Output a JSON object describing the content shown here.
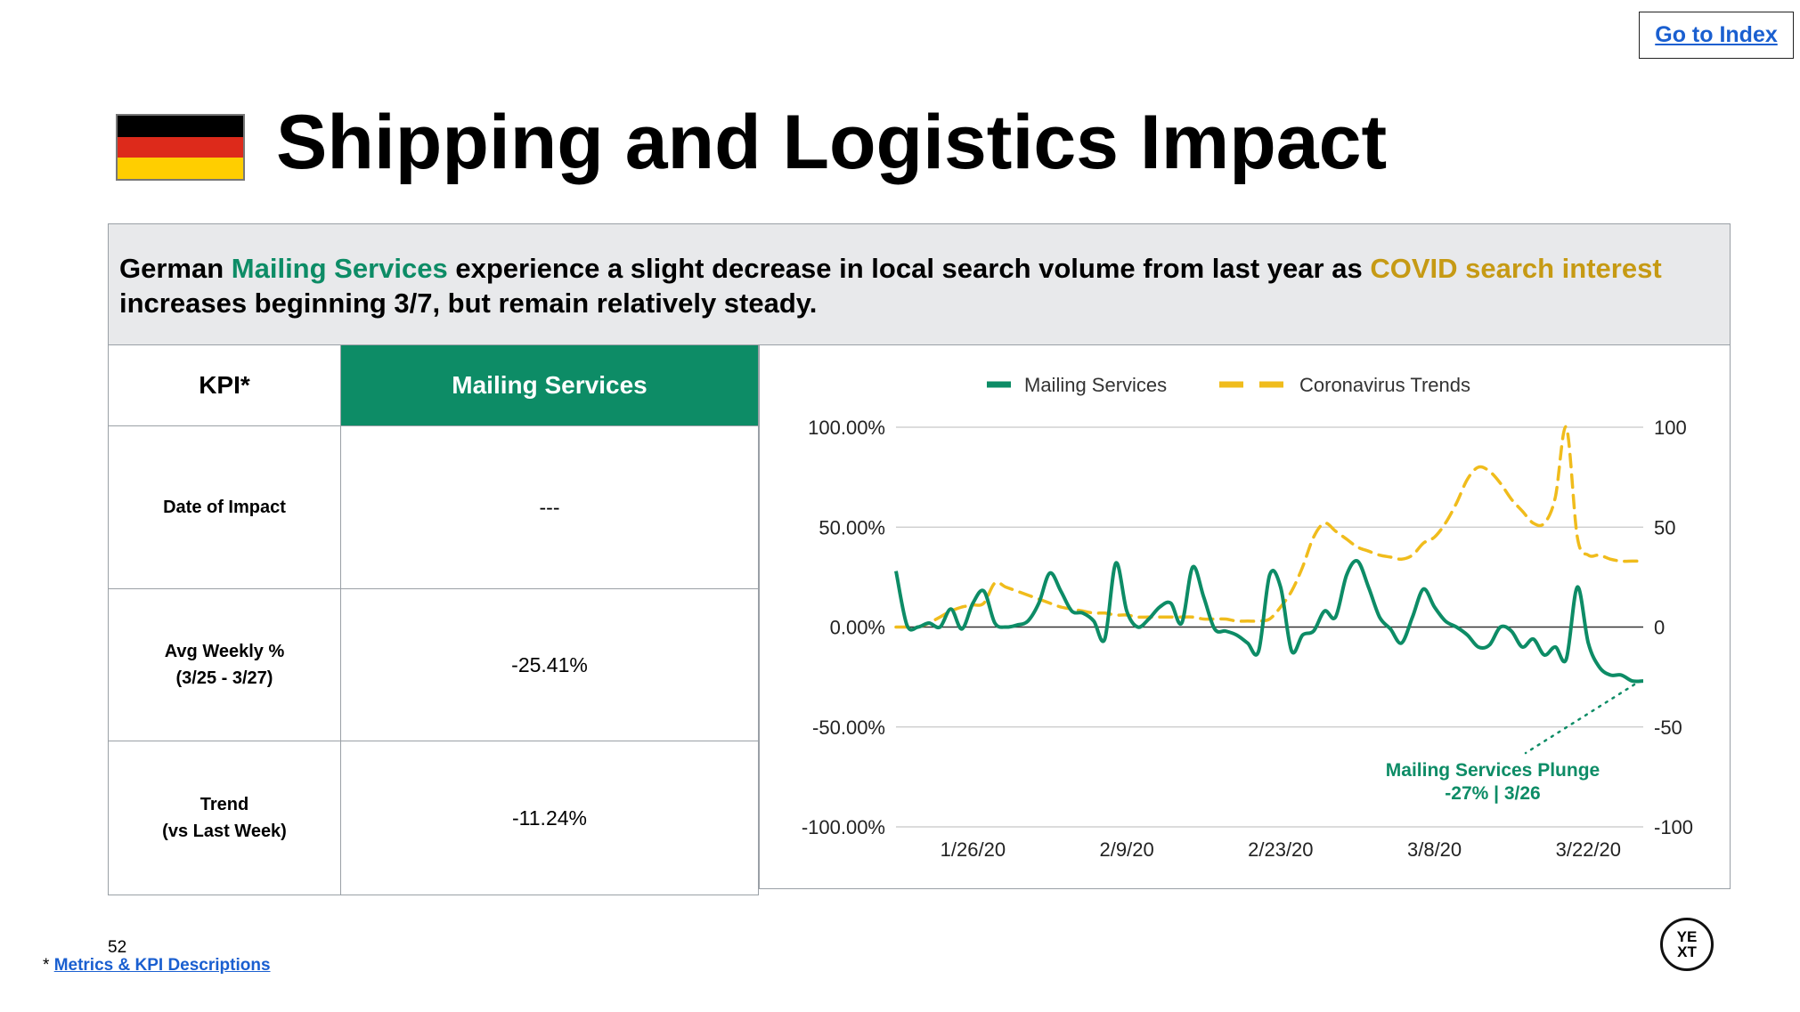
{
  "header": {
    "goto_label": "Go to Index",
    "title": "Shipping and Logistics Impact",
    "flag": {
      "name": "germany-flag",
      "colors": [
        "#000000",
        "#dd2a1b",
        "#ffce00"
      ]
    }
  },
  "banner": {
    "t1": "German ",
    "t2": "Mailing Services",
    "t3": " experience a slight decrease in local search volume from last year as ",
    "t4": "COVID search interest",
    "t5": " increases beginning 3/7, but remain relatively steady."
  },
  "kpi_table": {
    "header_left": "KPI*",
    "header_right": "Mailing Services",
    "rows": [
      {
        "label": "Date of Impact",
        "sublabel": "",
        "value": "---"
      },
      {
        "label": "Avg Weekly %",
        "sublabel": "(3/25 - 3/27)",
        "value": "-25.41%"
      },
      {
        "label": "Trend",
        "sublabel": "(vs Last Week)",
        "value": "-11.24%"
      }
    ]
  },
  "chart_data": {
    "type": "line",
    "title": "",
    "legend_placement": "top",
    "grid": true,
    "colors": {
      "mailing": "#0d8c66",
      "covid": "#f0bc1c",
      "grid": "#c8c8c8",
      "zero": "#333333",
      "annotation": "#0d8c66"
    },
    "x_ticks": [
      "1/26/20",
      "2/9/20",
      "2/23/20",
      "3/8/20",
      "3/22/20"
    ],
    "x_tick_positions": [
      7,
      21,
      35,
      49,
      63
    ],
    "x_range": [
      0,
      68
    ],
    "y_left": {
      "ticks": [
        "100.00%",
        "50.00%",
        "0.00%",
        "-50.00%",
        "-100.00%"
      ],
      "range": [
        -100,
        100
      ]
    },
    "y_right": {
      "ticks": [
        "100",
        "50",
        "0",
        "-50",
        "-100"
      ],
      "range": [
        -100,
        100
      ]
    },
    "series": [
      {
        "name": "Mailing Services",
        "style": "solid",
        "values": [
          28,
          1,
          0,
          2,
          0,
          9,
          -1,
          12,
          18,
          2,
          0,
          1,
          3,
          12,
          27,
          18,
          8,
          7,
          3,
          -6,
          32,
          8,
          0,
          4,
          10,
          12,
          2,
          30,
          15,
          -1,
          -2,
          -4,
          -8,
          -12,
          26,
          20,
          -12,
          -4,
          -2,
          8,
          5,
          26,
          33,
          20,
          5,
          -1,
          -8,
          5,
          19,
          10,
          3,
          0,
          -4,
          -10,
          -9,
          0,
          -2,
          -10,
          -6,
          -14,
          -10,
          -16,
          20,
          -8,
          -20,
          -24,
          -24,
          -27,
          -27
        ],
        "annotation": {
          "text": "Mailing Services Plunge",
          "subtext": "-27% | 3/26"
        }
      },
      {
        "name": "Coronavirus Trends",
        "style": "dashed",
        "values": [
          0,
          0,
          0,
          2,
          5,
          8,
          10,
          11,
          12,
          22,
          20,
          18,
          16,
          14,
          12,
          10,
          9,
          8,
          7,
          7,
          6,
          6,
          5,
          5,
          5,
          5,
          5,
          5,
          4,
          4,
          4,
          3,
          3,
          3,
          4,
          10,
          18,
          30,
          45,
          52,
          48,
          44,
          40,
          38,
          36,
          35,
          34,
          36,
          42,
          45,
          52,
          62,
          74,
          80,
          78,
          72,
          64,
          58,
          52,
          52,
          65,
          100,
          45,
          36,
          36,
          34,
          33,
          33,
          33
        ]
      }
    ]
  },
  "footer": {
    "page_number": "52",
    "footnote_star": "*",
    "footnote_link": "Metrics & KPI Descriptions",
    "logo_text_1": "YE",
    "logo_text_2": "XT"
  }
}
